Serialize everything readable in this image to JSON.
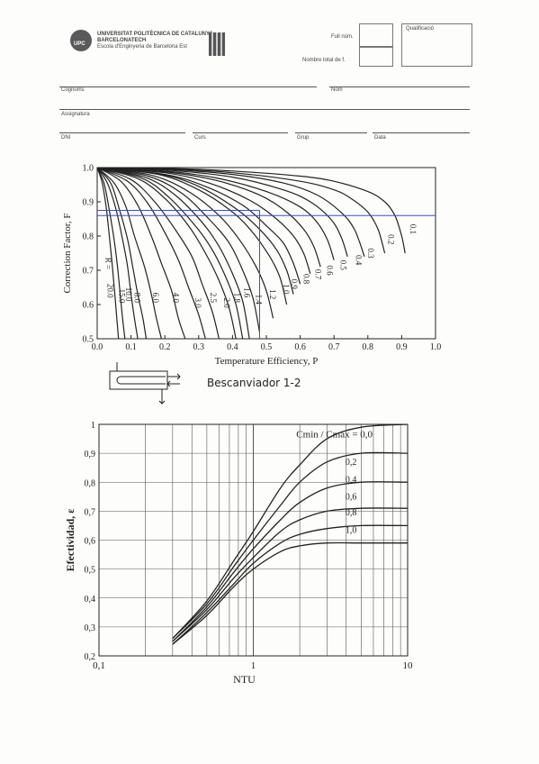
{
  "header": {
    "university_line1": "UNIVERSITAT POLITÈCNICA DE CATALUNYA",
    "university_line2": "BARCELONATECH",
    "school": "Escola d'Enginyeria de Barcelona Est",
    "logo_text": "UPC",
    "full_num_label": "Full núm.",
    "total_label": "Nombre total de f.",
    "grade_label": "Qualificació"
  },
  "form": {
    "surname_label": "Cognoms",
    "name_label": "Nom",
    "subject_label": "Assignatura",
    "dni_label": "DNI",
    "course_label": "Curs",
    "group_label": "Grup",
    "date_label": "Data"
  },
  "exchanger_caption": "Bescanviador 1-2",
  "colors": {
    "curves": "#222222",
    "reading_lines": "#3b4fc9",
    "grid": "#555555"
  },
  "chart_data": [
    {
      "type": "line",
      "xlabel": "Temperature Efficiency, P",
      "ylabel": "Correction Factor, F",
      "xlim": [
        0.0,
        1.0
      ],
      "ylim": [
        0.5,
        1.0
      ],
      "x_ticks": [
        "0.0",
        "0.1",
        "0.2",
        "0.3",
        "0.4",
        "0.5",
        "0.6",
        "0.7",
        "0.8",
        "0.9",
        "1.0"
      ],
      "y_ticks": [
        "0.5",
        "0.6",
        "0.7",
        "0.8",
        "0.9",
        "1.0"
      ],
      "series_param": "R",
      "series": [
        {
          "name": "0.1",
          "x": [
            0,
            0.2,
            0.4,
            0.6,
            0.7,
            0.8,
            0.85,
            0.88,
            0.9,
            0.91
          ],
          "y": [
            1,
            0.998,
            0.99,
            0.975,
            0.96,
            0.93,
            0.9,
            0.86,
            0.8,
            0.75
          ]
        },
        {
          "name": "0.2",
          "x": [
            0,
            0.2,
            0.4,
            0.6,
            0.7,
            0.75,
            0.8,
            0.83,
            0.85
          ],
          "y": [
            1,
            0.997,
            0.985,
            0.96,
            0.935,
            0.91,
            0.87,
            0.82,
            0.75
          ]
        },
        {
          "name": "0.3",
          "x": [
            0,
            0.2,
            0.4,
            0.55,
            0.65,
            0.72,
            0.76,
            0.79
          ],
          "y": [
            1,
            0.995,
            0.98,
            0.955,
            0.92,
            0.87,
            0.82,
            0.74
          ]
        },
        {
          "name": "0.4",
          "x": [
            0,
            0.2,
            0.4,
            0.55,
            0.63,
            0.69,
            0.72,
            0.74
          ],
          "y": [
            1,
            0.993,
            0.972,
            0.935,
            0.9,
            0.85,
            0.8,
            0.74
          ]
        },
        {
          "name": "0.5",
          "x": [
            0,
            0.2,
            0.35,
            0.5,
            0.6,
            0.65,
            0.68,
            0.7
          ],
          "y": [
            1,
            0.99,
            0.97,
            0.93,
            0.885,
            0.84,
            0.79,
            0.73
          ]
        },
        {
          "name": "0.6",
          "x": [
            0,
            0.2,
            0.35,
            0.48,
            0.56,
            0.61,
            0.64,
            0.66
          ],
          "y": [
            1,
            0.988,
            0.963,
            0.92,
            0.87,
            0.82,
            0.77,
            0.71
          ]
        },
        {
          "name": "0.7",
          "x": [
            0,
            0.2,
            0.33,
            0.45,
            0.53,
            0.58,
            0.61,
            0.63
          ],
          "y": [
            1,
            0.985,
            0.955,
            0.905,
            0.85,
            0.8,
            0.75,
            0.69
          ]
        },
        {
          "name": "0.8",
          "x": [
            0,
            0.2,
            0.32,
            0.43,
            0.5,
            0.55,
            0.58,
            0.6
          ],
          "y": [
            1,
            0.98,
            0.945,
            0.89,
            0.83,
            0.78,
            0.72,
            0.66
          ]
        },
        {
          "name": "0.9",
          "x": [
            0,
            0.18,
            0.3,
            0.41,
            0.48,
            0.53,
            0.56,
            0.58
          ],
          "y": [
            1,
            0.982,
            0.945,
            0.88,
            0.82,
            0.76,
            0.7,
            0.63
          ]
        },
        {
          "name": "1.0",
          "x": [
            0,
            0.18,
            0.3,
            0.4,
            0.46,
            0.51,
            0.54,
            0.56
          ],
          "y": [
            1,
            0.98,
            0.935,
            0.87,
            0.81,
            0.74,
            0.68,
            0.6
          ]
        },
        {
          "name": "1.2",
          "x": [
            0,
            0.16,
            0.27,
            0.36,
            0.42,
            0.47,
            0.5,
            0.52
          ],
          "y": [
            1,
            0.978,
            0.93,
            0.86,
            0.79,
            0.71,
            0.64,
            0.56
          ]
        },
        {
          "name": "1.4",
          "x": [
            0,
            0.15,
            0.25,
            0.33,
            0.39,
            0.43,
            0.46,
            0.48
          ],
          "y": [
            1,
            0.975,
            0.925,
            0.85,
            0.78,
            0.7,
            0.62,
            0.52
          ]
        },
        {
          "name": "1.6",
          "x": [
            0,
            0.14,
            0.23,
            0.31,
            0.36,
            0.4,
            0.43,
            0.45
          ],
          "y": [
            1,
            0.972,
            0.92,
            0.84,
            0.77,
            0.69,
            0.61,
            0.5
          ]
        },
        {
          "name": "1.8",
          "x": [
            0,
            0.13,
            0.21,
            0.29,
            0.34,
            0.38,
            0.41,
            0.43
          ],
          "y": [
            1,
            0.97,
            0.915,
            0.83,
            0.76,
            0.68,
            0.6,
            0.5
          ]
        },
        {
          "name": "2.0",
          "x": [
            0,
            0.12,
            0.2,
            0.27,
            0.32,
            0.36,
            0.39,
            0.41
          ],
          "y": [
            1,
            0.968,
            0.91,
            0.83,
            0.75,
            0.67,
            0.59,
            0.5
          ]
        },
        {
          "name": "2.5",
          "x": [
            0,
            0.1,
            0.17,
            0.23,
            0.28,
            0.31,
            0.34,
            0.36
          ],
          "y": [
            1,
            0.965,
            0.9,
            0.82,
            0.74,
            0.66,
            0.58,
            0.5
          ]
        },
        {
          "name": "3.0",
          "x": [
            0,
            0.09,
            0.15,
            0.2,
            0.24,
            0.27,
            0.3,
            0.32
          ],
          "y": [
            1,
            0.96,
            0.895,
            0.81,
            0.73,
            0.65,
            0.57,
            0.5
          ]
        },
        {
          "name": "4.0",
          "x": [
            0,
            0.07,
            0.12,
            0.16,
            0.19,
            0.22,
            0.24,
            0.26
          ],
          "y": [
            1,
            0.96,
            0.89,
            0.8,
            0.72,
            0.64,
            0.56,
            0.5
          ]
        },
        {
          "name": "6.0",
          "x": [
            0,
            0.05,
            0.085,
            0.11,
            0.14,
            0.16,
            0.175,
            0.19
          ],
          "y": [
            1,
            0.955,
            0.885,
            0.8,
            0.71,
            0.63,
            0.56,
            0.5
          ]
        },
        {
          "name": "8.0",
          "x": [
            0,
            0.04,
            0.065,
            0.09,
            0.105,
            0.12,
            0.135,
            0.145
          ],
          "y": [
            1,
            0.955,
            0.88,
            0.79,
            0.71,
            0.63,
            0.56,
            0.5
          ]
        },
        {
          "name": "10.0",
          "x": [
            0,
            0.03,
            0.055,
            0.075,
            0.09,
            0.1,
            0.11,
            0.12
          ],
          "y": [
            1,
            0.955,
            0.88,
            0.79,
            0.71,
            0.63,
            0.56,
            0.5
          ]
        },
        {
          "name": "15.0",
          "x": [
            0,
            0.02,
            0.035,
            0.05,
            0.06,
            0.068,
            0.075,
            0.082
          ],
          "y": [
            1,
            0.955,
            0.88,
            0.79,
            0.71,
            0.63,
            0.56,
            0.5
          ]
        },
        {
          "name": "20.0",
          "x": [
            0,
            0.015,
            0.027,
            0.037,
            0.045,
            0.052,
            0.058,
            0.063
          ],
          "y": [
            1,
            0.955,
            0.88,
            0.79,
            0.71,
            0.63,
            0.56,
            0.5
          ]
        }
      ],
      "curve_labels": [
        {
          "text": "0.1",
          "x": 0.925,
          "y": 0.82
        },
        {
          "text": "0.2",
          "x": 0.86,
          "y": 0.79
        },
        {
          "text": "0.3",
          "x": 0.8,
          "y": 0.75
        },
        {
          "text": "0.4",
          "x": 0.765,
          "y": 0.73
        },
        {
          "text": "0.5",
          "x": 0.72,
          "y": 0.715
        },
        {
          "text": "0.6",
          "x": 0.68,
          "y": 0.7
        },
        {
          "text": "0.7",
          "x": 0.645,
          "y": 0.688
        },
        {
          "text": "0.8",
          "x": 0.61,
          "y": 0.675
        },
        {
          "text": "0.9",
          "x": 0.575,
          "y": 0.66
        },
        {
          "text": "1.0",
          "x": 0.55,
          "y": 0.645
        },
        {
          "text": "1.2",
          "x": 0.51,
          "y": 0.63
        },
        {
          "text": "1.4",
          "x": 0.47,
          "y": 0.615
        },
        {
          "text": "1.6",
          "x": 0.435,
          "y": 0.635
        },
        {
          "text": "1.8",
          "x": 0.405,
          "y": 0.62
        },
        {
          "text": "2.0",
          "x": 0.375,
          "y": 0.605
        },
        {
          "text": "2.5",
          "x": 0.335,
          "y": 0.62
        },
        {
          "text": "3.0",
          "x": 0.29,
          "y": 0.605
        },
        {
          "text": "4.0",
          "x": 0.225,
          "y": 0.62
        },
        {
          "text": "6.0",
          "x": 0.165,
          "y": 0.62
        },
        {
          "text": "8.0",
          "x": 0.11,
          "y": 0.62
        },
        {
          "text": "10.0",
          "x": 0.085,
          "y": 0.63
        },
        {
          "text": "15.0",
          "x": 0.065,
          "y": 0.625
        },
        {
          "text": "20.0",
          "x": 0.03,
          "y": 0.64
        }
      ],
      "r_symbol": "R =",
      "reading_lines": {
        "P": 0.48,
        "F": 0.86,
        "F2": 0.875
      }
    },
    {
      "type": "line",
      "xlabel": "NTU",
      "ylabel": "Efectividad, ε",
      "x_scale": "log",
      "xlim": [
        0.1,
        10
      ],
      "ylim": [
        0.2,
        1.0
      ],
      "x_ticks": [
        "0,1",
        "1",
        "10"
      ],
      "y_ticks": [
        "0,2",
        "0,3",
        "0,4",
        "0,5",
        "0,6",
        "0,7",
        "0,8",
        "0,9",
        "1"
      ],
      "legend_title": "Cmin / Cmax = 0,0",
      "series": [
        {
          "name": "0,0",
          "x": [
            0.3,
            0.5,
            0.75,
            1,
            1.5,
            2,
            3,
            5,
            10
          ],
          "y": [
            0.26,
            0.39,
            0.53,
            0.63,
            0.78,
            0.86,
            0.95,
            0.99,
            1.0
          ]
        },
        {
          "name": "0,2",
          "x": [
            0.3,
            0.5,
            0.75,
            1,
            1.5,
            2,
            3,
            5,
            10
          ],
          "y": [
            0.26,
            0.38,
            0.51,
            0.6,
            0.72,
            0.8,
            0.87,
            0.9,
            0.9
          ]
        },
        {
          "name": "0,4",
          "x": [
            0.3,
            0.5,
            0.75,
            1,
            1.5,
            2,
            3,
            5,
            10
          ],
          "y": [
            0.25,
            0.37,
            0.49,
            0.57,
            0.67,
            0.73,
            0.78,
            0.8,
            0.8
          ]
        },
        {
          "name": "0,6",
          "x": [
            0.3,
            0.5,
            0.75,
            1,
            1.5,
            2,
            3,
            5,
            10
          ],
          "y": [
            0.25,
            0.36,
            0.47,
            0.54,
            0.63,
            0.67,
            0.7,
            0.71,
            0.71
          ]
        },
        {
          "name": "0,8",
          "x": [
            0.3,
            0.5,
            0.75,
            1,
            1.5,
            2,
            3,
            5,
            10
          ],
          "y": [
            0.24,
            0.35,
            0.45,
            0.52,
            0.59,
            0.62,
            0.64,
            0.65,
            0.65
          ]
        },
        {
          "name": "1,0",
          "x": [
            0.3,
            0.5,
            0.75,
            1,
            1.5,
            2,
            3,
            5,
            10
          ],
          "y": [
            0.24,
            0.34,
            0.44,
            0.5,
            0.56,
            0.58,
            0.59,
            0.59,
            0.59
          ]
        }
      ]
    }
  ]
}
